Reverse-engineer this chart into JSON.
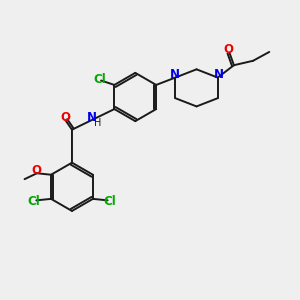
{
  "bg_color": "#efefef",
  "bond_color": "#1a1a1a",
  "N_color": "#0000ee",
  "O_color": "#ee0000",
  "Cl_color": "#00aa00",
  "bond_width": 1.4,
  "font_size": 8.5,
  "fig_size": [
    3.0,
    3.0
  ],
  "dpi": 100,
  "xlim": [
    0,
    10
  ],
  "ylim": [
    0,
    10
  ]
}
